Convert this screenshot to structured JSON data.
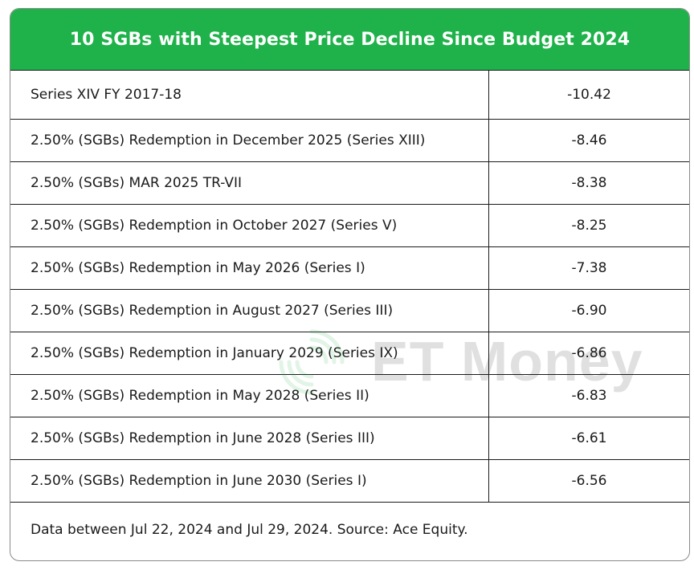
{
  "title": "10 SGBs with Steepest Price Decline Since Budget 2024",
  "rows": [
    {
      "name": "Series XIV FY 2017-18",
      "value": "-10.42"
    },
    {
      "name": "2.50% (SGBs) Redemption in December 2025 (Series XIII)",
      "value": "-8.46"
    },
    {
      "name": "2.50% (SGBs) MAR 2025 TR-VII",
      "value": "-8.38"
    },
    {
      "name": "2.50% (SGBs) Redemption in October 2027 (Series V)",
      "value": "-8.25"
    },
    {
      "name": "2.50% (SGBs) Redemption in May 2026 (Series I)",
      "value": "-7.38"
    },
    {
      "name": "2.50% (SGBs) Redemption in August 2027 (Series III)",
      "value": "-6.90"
    },
    {
      "name": "2.50% (SGBs) Redemption in January 2029 (Series IX)",
      "value": "-6.86"
    },
    {
      "name": "2.50% (SGBs) Redemption in May 2028 (Series II)",
      "value": "-6.83"
    },
    {
      "name": "2.50% (SGBs) Redemption in June 2028 (Series III)",
      "value": "-6.61"
    },
    {
      "name": "2.50% (SGBs) Redemption in June 2030 (Series I)",
      "value": "-6.56"
    }
  ],
  "footer": "Data between Jul 22, 2024 and Jul 29, 2024. Source: Ace Equity.",
  "watermark": {
    "text": "ET Money",
    "icon": "et-money-logo-icon"
  },
  "colors": {
    "header_background": "#1fb24a",
    "header_text": "#ffffff",
    "border": "#1a1a1a",
    "watermark_logo": "#1fb24a"
  }
}
